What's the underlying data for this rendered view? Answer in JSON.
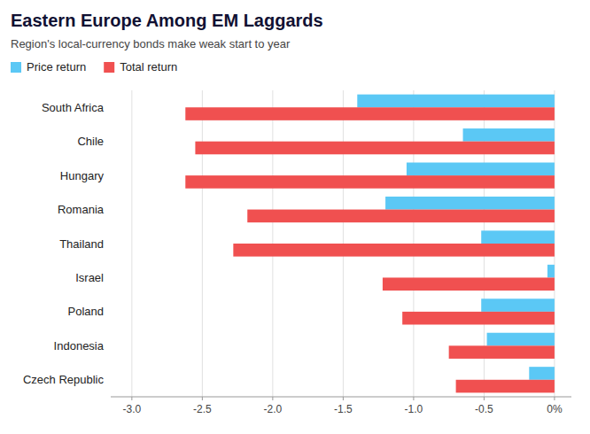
{
  "chart_data": {
    "type": "bar",
    "orientation": "horizontal",
    "title": "Eastern Europe Among EM Laggards",
    "subtitle": "Region's local-currency bonds make weak start to year",
    "categories": [
      "South Africa",
      "Chile",
      "Hungary",
      "Romania",
      "Thailand",
      "Israel",
      "Poland",
      "Indonesia",
      "Czech Republic"
    ],
    "series": [
      {
        "name": "Price return",
        "color": "#5BC8F5",
        "values": [
          -1.4,
          -0.65,
          -1.05,
          -1.2,
          -0.52,
          -0.05,
          -0.52,
          -0.48,
          -0.18
        ]
      },
      {
        "name": "Total return",
        "color": "#F05050",
        "values": [
          -2.62,
          -2.55,
          -2.62,
          -2.18,
          -2.28,
          -1.22,
          -1.08,
          -0.75,
          -0.7
        ]
      }
    ],
    "xlim": [
      -3.15,
      0.12
    ],
    "xticks": [
      {
        "value": -3.0,
        "label": "-3.0"
      },
      -2.5,
      {
        "value": -2.0,
        "label": "-2.0"
      },
      -1.5,
      {
        "value": -1.0,
        "label": "-1.0"
      },
      -0.5,
      {
        "value": 0.0,
        "label": "0%"
      }
    ],
    "grid": true,
    "legend": "top-left"
  }
}
